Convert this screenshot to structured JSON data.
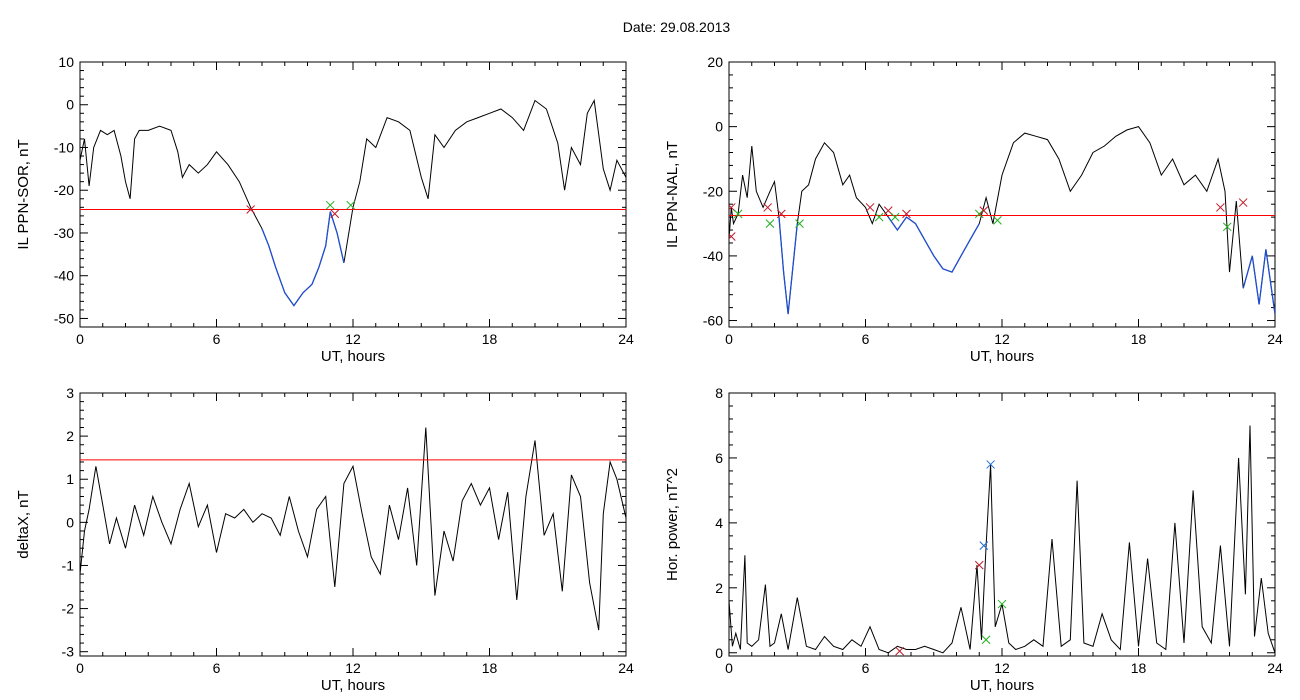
{
  "title": "Date:  29.08.2013",
  "colors": {
    "axis": "#000000",
    "trace": "#000000",
    "below": "#1f4fd1",
    "threshold": "#ff0000",
    "mark_red": "#c0182a",
    "mark_green": "#21b021",
    "mark_blue": "#1f6fd8"
  },
  "chart_data": [
    {
      "type": "line",
      "panel": "top-left",
      "xlabel": "UT, hours",
      "ylabel": "IL PPN-SOR, nT",
      "xlim": [
        0,
        24
      ],
      "ylim": [
        -52,
        10
      ],
      "xticks": [
        0,
        6,
        12,
        18,
        24
      ],
      "yticks": [
        -50,
        -40,
        -30,
        -20,
        -10,
        0,
        10
      ],
      "threshold": -24.5,
      "highlight_below": true,
      "series": [
        {
          "x": [
            0,
            0.2,
            0.4,
            0.6,
            0.9,
            1.2,
            1.5,
            1.8,
            2.0,
            2.2,
            2.4,
            2.6,
            3.0,
            3.5,
            4.0,
            4.3,
            4.5,
            4.8,
            5.2,
            5.6,
            6.0,
            6.5,
            7.0,
            7.5,
            8.0,
            8.3,
            8.6,
            9.0,
            9.4,
            9.8,
            10.2,
            10.5,
            10.8,
            11.0,
            11.3,
            11.6,
            12.0,
            12.3,
            12.6,
            13.0,
            13.5,
            14.0,
            14.5,
            15.0,
            15.3,
            15.6,
            16.0,
            16.5,
            17.0,
            17.5,
            18.0,
            18.5,
            19.0,
            19.5,
            20.0,
            20.5,
            21.0,
            21.3,
            21.6,
            22.0,
            22.3,
            22.6,
            23.0,
            23.3,
            23.6,
            24.0
          ],
          "y": [
            -13,
            -8,
            -19,
            -10,
            -6,
            -7,
            -6,
            -12,
            -18,
            -22,
            -8,
            -6,
            -6,
            -5,
            -6,
            -11,
            -17,
            -14,
            -16,
            -14,
            -11,
            -14,
            -18,
            -24,
            -29,
            -33,
            -38,
            -44,
            -47,
            -44,
            -42,
            -38,
            -33,
            -25,
            -30,
            -37,
            -24,
            -18,
            -8,
            -10,
            -3,
            -4,
            -6,
            -17,
            -22,
            -7,
            -10,
            -6,
            -4,
            -3,
            -2,
            -1,
            -3,
            -6,
            1,
            -1,
            -9,
            -20,
            -10,
            -14,
            -2,
            1,
            -15,
            -20,
            -13,
            -17
          ]
        }
      ],
      "marks": [
        {
          "x": 7.5,
          "y": -24.5,
          "color": "red"
        },
        {
          "x": 11.2,
          "y": -25.5,
          "color": "red"
        },
        {
          "x": 11.0,
          "y": -23.5,
          "color": "green"
        },
        {
          "x": 11.9,
          "y": -23.5,
          "color": "green"
        }
      ]
    },
    {
      "type": "line",
      "panel": "top-right",
      "xlabel": "UT, hours",
      "ylabel": "IL PPN-NAL, nT",
      "xlim": [
        0,
        24
      ],
      "ylim": [
        -62,
        20
      ],
      "xticks": [
        0,
        6,
        12,
        18,
        24
      ],
      "yticks": [
        -60,
        -40,
        -20,
        0,
        20
      ],
      "threshold": -27.5,
      "highlight_below": true,
      "series": [
        {
          "x": [
            0,
            0.1,
            0.2,
            0.4,
            0.6,
            0.8,
            1.0,
            1.2,
            1.5,
            1.8,
            2.0,
            2.2,
            2.4,
            2.6,
            3.0,
            3.2,
            3.5,
            3.8,
            4.2,
            4.6,
            5.0,
            5.3,
            5.6,
            6.0,
            6.3,
            6.6,
            7.0,
            7.4,
            7.8,
            8.2,
            8.6,
            9.0,
            9.4,
            9.8,
            10.2,
            10.6,
            11.0,
            11.3,
            11.6,
            12.0,
            12.5,
            13.0,
            13.5,
            14.0,
            14.5,
            15.0,
            15.5,
            16.0,
            16.5,
            17.0,
            17.5,
            18.0,
            18.5,
            19.0,
            19.5,
            20.0,
            20.5,
            21.0,
            21.5,
            21.8,
            22.0,
            22.3,
            22.6,
            23.0,
            23.3,
            23.6,
            24.0
          ],
          "y": [
            -35,
            -25,
            -30,
            -27,
            -15,
            -22,
            -6,
            -20,
            -25,
            -20,
            -17,
            -28,
            -45,
            -58,
            -30,
            -20,
            -18,
            -10,
            -5,
            -8,
            -18,
            -15,
            -22,
            -25,
            -30,
            -24,
            -28,
            -32,
            -28,
            -30,
            -35,
            -40,
            -44,
            -45,
            -40,
            -35,
            -30,
            -22,
            -30,
            -15,
            -5,
            -2,
            -3,
            -4,
            -10,
            -20,
            -15,
            -8,
            -6,
            -3,
            -1,
            0,
            -5,
            -15,
            -10,
            -18,
            -15,
            -20,
            -10,
            -20,
            -45,
            -23,
            -50,
            -40,
            -55,
            -38,
            -58
          ]
        }
      ],
      "marks": [
        {
          "x": 0.1,
          "y": -25,
          "color": "red"
        },
        {
          "x": 0.1,
          "y": -34,
          "color": "red"
        },
        {
          "x": 0.4,
          "y": -27,
          "color": "green"
        },
        {
          "x": 1.7,
          "y": -25,
          "color": "red"
        },
        {
          "x": 1.8,
          "y": -30,
          "color": "green"
        },
        {
          "x": 2.3,
          "y": -27,
          "color": "red"
        },
        {
          "x": 3.1,
          "y": -30,
          "color": "green"
        },
        {
          "x": 6.2,
          "y": -25,
          "color": "red"
        },
        {
          "x": 6.6,
          "y": -28,
          "color": "green"
        },
        {
          "x": 7.0,
          "y": -26,
          "color": "red"
        },
        {
          "x": 7.3,
          "y": -28,
          "color": "green"
        },
        {
          "x": 7.8,
          "y": -27,
          "color": "red"
        },
        {
          "x": 11.0,
          "y": -27,
          "color": "green"
        },
        {
          "x": 11.2,
          "y": -26,
          "color": "red"
        },
        {
          "x": 11.8,
          "y": -29,
          "color": "green"
        },
        {
          "x": 21.6,
          "y": -25,
          "color": "red"
        },
        {
          "x": 21.9,
          "y": -31,
          "color": "green"
        },
        {
          "x": 22.6,
          "y": -23.5,
          "color": "red"
        }
      ]
    },
    {
      "type": "line",
      "panel": "bottom-left",
      "xlabel": "UT, hours",
      "ylabel": "deltaX, nT",
      "xlim": [
        0,
        24
      ],
      "ylim": [
        -3.1,
        3
      ],
      "xticks": [
        0,
        6,
        12,
        18,
        24
      ],
      "yticks": [
        -3,
        -2,
        -1,
        0,
        1,
        2,
        3
      ],
      "threshold": 1.45,
      "highlight_below": false,
      "series": [
        {
          "x": [
            0,
            0.2,
            0.4,
            0.7,
            1.0,
            1.3,
            1.6,
            2.0,
            2.4,
            2.8,
            3.2,
            3.6,
            4.0,
            4.4,
            4.8,
            5.2,
            5.6,
            6.0,
            6.4,
            6.8,
            7.2,
            7.6,
            8.0,
            8.4,
            8.8,
            9.2,
            9.6,
            10.0,
            10.4,
            10.8,
            11.2,
            11.6,
            12.0,
            12.4,
            12.8,
            13.2,
            13.6,
            14.0,
            14.4,
            14.8,
            15.2,
            15.6,
            16.0,
            16.4,
            16.8,
            17.2,
            17.6,
            18.0,
            18.4,
            18.8,
            19.2,
            19.6,
            20.0,
            20.4,
            20.8,
            21.2,
            21.6,
            22.0,
            22.4,
            22.8,
            23.0,
            23.3,
            23.6,
            24.0
          ],
          "y": [
            -1.2,
            -0.2,
            0.3,
            1.3,
            0.4,
            -0.5,
            0.1,
            -0.6,
            0.4,
            -0.3,
            0.6,
            0.0,
            -0.5,
            0.3,
            0.9,
            -0.1,
            0.4,
            -0.7,
            0.2,
            0.1,
            0.3,
            0.0,
            0.2,
            0.1,
            -0.3,
            0.6,
            -0.2,
            -0.8,
            0.3,
            0.6,
            -1.5,
            0.9,
            1.3,
            0.2,
            -0.8,
            -1.2,
            0.4,
            -0.4,
            0.8,
            -1.0,
            2.2,
            -1.7,
            -0.2,
            -0.9,
            0.5,
            0.9,
            0.4,
            0.8,
            -0.4,
            0.7,
            -1.8,
            0.6,
            1.9,
            -0.3,
            0.2,
            -1.6,
            1.1,
            0.6,
            -1.4,
            -2.5,
            0.2,
            1.4,
            1.0,
            0.1
          ]
        }
      ],
      "marks": []
    },
    {
      "type": "line",
      "panel": "bottom-right",
      "xlabel": "UT, hours",
      "ylabel": "Hor. power, nT^2",
      "xlim": [
        0,
        24
      ],
      "ylim": [
        -0.1,
        8
      ],
      "xticks": [
        0,
        6,
        12,
        18,
        24
      ],
      "yticks": [
        0,
        2,
        4,
        6,
        8
      ],
      "threshold": null,
      "highlight_below": false,
      "series": [
        {
          "x": [
            0,
            0.15,
            0.3,
            0.5,
            0.7,
            0.8,
            1.0,
            1.3,
            1.6,
            1.8,
            2.0,
            2.3,
            2.6,
            3.0,
            3.4,
            3.8,
            4.2,
            4.6,
            5.0,
            5.4,
            5.8,
            6.2,
            6.6,
            7.0,
            7.4,
            7.8,
            8.2,
            8.6,
            9.0,
            9.4,
            9.8,
            10.2,
            10.6,
            10.9,
            11.1,
            11.3,
            11.5,
            11.7,
            12.0,
            12.3,
            12.6,
            13.0,
            13.4,
            13.8,
            14.2,
            14.6,
            15.0,
            15.3,
            15.6,
            16.0,
            16.4,
            16.8,
            17.2,
            17.6,
            18.0,
            18.4,
            18.8,
            19.2,
            19.6,
            20.0,
            20.4,
            20.8,
            21.2,
            21.6,
            22.0,
            22.4,
            22.7,
            22.9,
            23.1,
            23.4,
            23.7,
            24.0
          ],
          "y": [
            1.6,
            0.2,
            0.6,
            0.1,
            3.0,
            0.3,
            0.2,
            0.4,
            2.1,
            0.2,
            0.3,
            1.2,
            0.1,
            1.7,
            0.2,
            0.1,
            0.5,
            0.2,
            0.1,
            0.4,
            0.2,
            0.8,
            0.1,
            0.0,
            0.2,
            0.1,
            0.1,
            0.2,
            0.1,
            0.0,
            0.3,
            1.4,
            0.1,
            2.7,
            0.4,
            3.3,
            5.8,
            0.8,
            1.5,
            0.3,
            0.1,
            0.2,
            0.4,
            0.2,
            3.5,
            0.2,
            0.4,
            5.3,
            0.3,
            0.2,
            1.2,
            0.4,
            0.1,
            3.4,
            0.2,
            2.9,
            0.3,
            0.1,
            4.0,
            0.3,
            5.0,
            0.8,
            0.3,
            3.3,
            0.2,
            6.0,
            1.8,
            7.0,
            0.5,
            2.3,
            0.6,
            0.0
          ]
        }
      ],
      "marks": [
        {
          "x": 7.5,
          "y": 0.05,
          "color": "red"
        },
        {
          "x": 11.0,
          "y": 2.7,
          "color": "red"
        },
        {
          "x": 11.2,
          "y": 3.3,
          "color": "blue"
        },
        {
          "x": 11.5,
          "y": 5.8,
          "color": "blue"
        },
        {
          "x": 11.3,
          "y": 0.4,
          "color": "green"
        },
        {
          "x": 12.0,
          "y": 1.5,
          "color": "green"
        }
      ]
    }
  ]
}
